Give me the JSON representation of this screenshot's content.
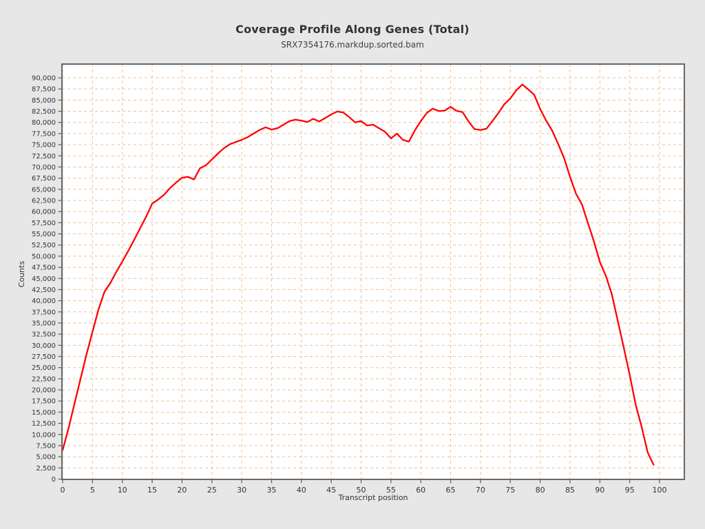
{
  "page": {
    "background_color": "#e7e7e7",
    "title": "Coverage Profile Along Genes (Total)",
    "subtitle": "SRX7354176.markdup.sorted.bam"
  },
  "chart_data": {
    "type": "line",
    "title": "Coverage Profile Along Genes (Total)",
    "subtitle": "SRX7354176.markdup.sorted.bam",
    "xlabel": "Transcript position",
    "ylabel": "Counts",
    "xlim": [
      0,
      104
    ],
    "ylim": [
      0,
      93000
    ],
    "xticks": [
      0,
      5,
      10,
      15,
      20,
      25,
      30,
      35,
      40,
      45,
      50,
      55,
      60,
      65,
      70,
      75,
      80,
      85,
      90,
      95,
      100
    ],
    "yticks": [
      0,
      2500,
      5000,
      7500,
      10000,
      12500,
      15000,
      17500,
      20000,
      22500,
      25000,
      27500,
      30000,
      32500,
      35000,
      37500,
      40000,
      42500,
      45000,
      47500,
      50000,
      52500,
      55000,
      57500,
      60000,
      62500,
      65000,
      67500,
      70000,
      72500,
      75000,
      77500,
      80000,
      82500,
      85000,
      87500,
      90000
    ],
    "grid": true,
    "legend": "none",
    "colors": {
      "line": "#fe0000",
      "grid": "#f3bd8d",
      "plot_background": "#ffffff",
      "frame": "#666666",
      "tick": "#666666",
      "text": "#333333"
    },
    "series": [
      {
        "name": "SRX7354176.markdup.sorted.bam",
        "x": [
          0,
          1,
          2,
          3,
          4,
          5,
          6,
          7,
          8,
          9,
          10,
          11,
          12,
          13,
          14,
          15,
          16,
          17,
          18,
          19,
          20,
          21,
          22,
          23,
          24,
          25,
          26,
          27,
          28,
          29,
          30,
          31,
          32,
          33,
          34,
          35,
          36,
          37,
          38,
          39,
          40,
          41,
          42,
          43,
          44,
          45,
          46,
          47,
          48,
          49,
          50,
          51,
          52,
          53,
          54,
          55,
          56,
          57,
          58,
          59,
          60,
          61,
          62,
          63,
          64,
          65,
          66,
          67,
          68,
          69,
          70,
          71,
          72,
          73,
          74,
          75,
          76,
          77,
          78,
          79,
          80,
          81,
          82,
          83,
          84,
          85,
          86,
          87,
          88,
          89,
          90,
          91,
          92,
          93,
          94,
          95,
          96,
          97,
          98,
          99
        ],
        "values": [
          6500,
          11500,
          17000,
          22500,
          28000,
          33000,
          38000,
          42000,
          44000,
          46500,
          48800,
          51200,
          53700,
          56300,
          58900,
          61800,
          62700,
          63800,
          65300,
          66500,
          67600,
          67800,
          67200,
          69700,
          70400,
          71700,
          73000,
          74200,
          75100,
          75600,
          76100,
          76700,
          77500,
          78300,
          78900,
          78400,
          78700,
          79500,
          80300,
          80600,
          80400,
          80100,
          80800,
          80200,
          81000,
          81800,
          82450,
          82250,
          81200,
          80000,
          80300,
          79300,
          79500,
          78700,
          77900,
          76400,
          77500,
          76100,
          75700,
          78200,
          80300,
          82100,
          83100,
          82550,
          82650,
          83500,
          82600,
          82300,
          80200,
          78500,
          78300,
          78600,
          80300,
          82100,
          84100,
          85400,
          87200,
          88500,
          87400,
          86200,
          83000,
          80400,
          78200,
          75200,
          72000,
          67800,
          64000,
          61600,
          57400,
          53300,
          48700,
          45600,
          41500,
          35500,
          29500,
          23400,
          16700,
          11700,
          6000,
          3200
        ]
      }
    ]
  }
}
